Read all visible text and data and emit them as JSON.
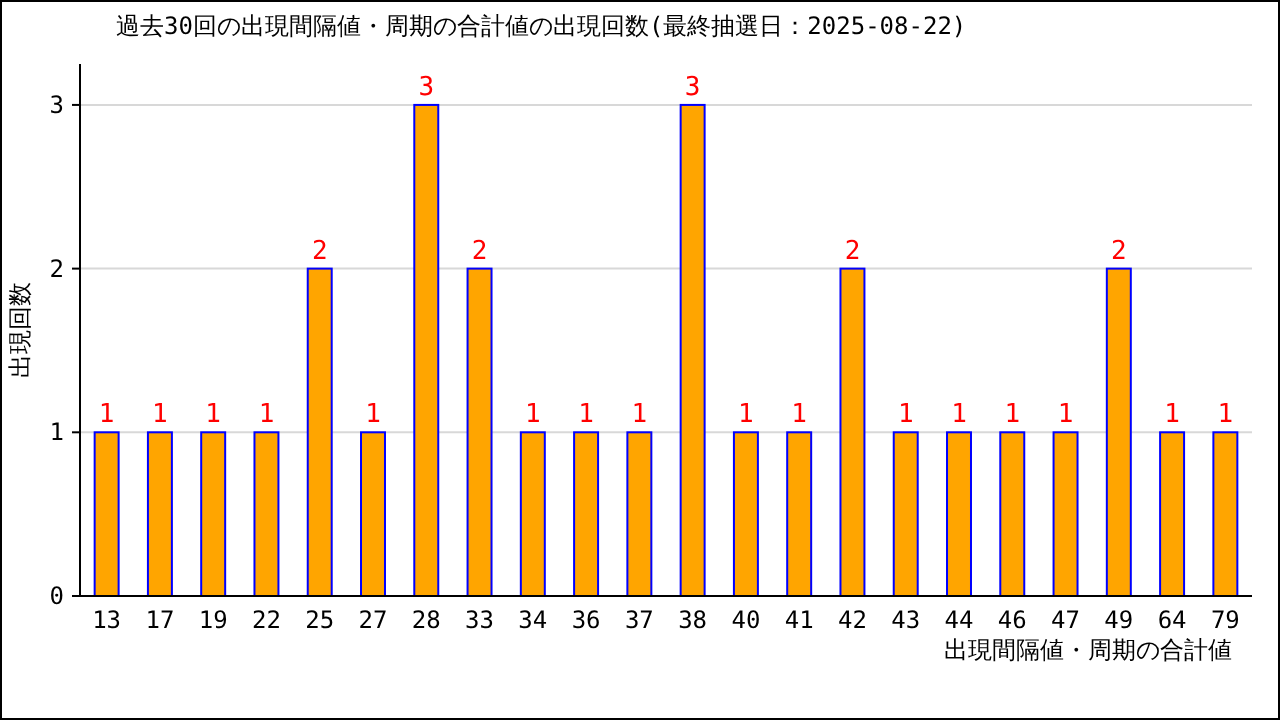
{
  "chart_data": {
    "type": "bar",
    "title": "過去30回の出現間隔値・周期の合計値の出現回数(最終抽選日：2025-08-22)",
    "xlabel": "出現間隔値・周期の合計値",
    "ylabel": "出現回数",
    "categories": [
      "13",
      "17",
      "19",
      "22",
      "25",
      "27",
      "28",
      "33",
      "34",
      "36",
      "37",
      "38",
      "40",
      "41",
      "42",
      "43",
      "44",
      "46",
      "47",
      "49",
      "64",
      "79"
    ],
    "values": [
      1,
      1,
      1,
      1,
      2,
      1,
      3,
      2,
      1,
      1,
      1,
      3,
      1,
      1,
      2,
      1,
      1,
      1,
      1,
      2,
      1,
      1
    ],
    "color": "#ffa500",
    "ylim": [
      0,
      3.25
    ],
    "yticks": [
      0,
      1,
      2,
      3
    ],
    "grid": "y",
    "data_labels": true
  }
}
